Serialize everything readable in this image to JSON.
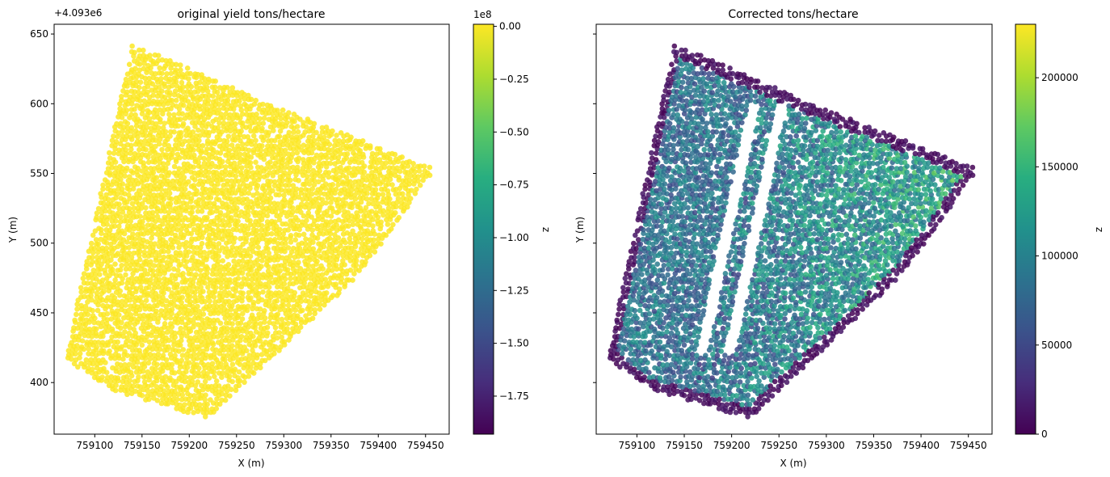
{
  "chart_data": [
    {
      "type": "scatter",
      "title": "original yield tons/hectare",
      "xlabel": "X (m)",
      "ylabel": "Y (m)",
      "y_offset_label": "+4.093e6",
      "xlim": [
        759057,
        759475
      ],
      "ylim": [
        363,
        657
      ],
      "xticks": [
        759100,
        759150,
        759200,
        759250,
        759300,
        759350,
        759400,
        759450
      ],
      "xtick_labels": [
        "759100",
        "759150",
        "759200",
        "759250",
        "759300",
        "759350",
        "759400",
        "759450"
      ],
      "yticks": [
        400,
        450,
        500,
        550,
        600,
        650
      ],
      "ytick_labels": [
        "400",
        "450",
        "500",
        "550",
        "600",
        "650"
      ],
      "field_outline_xy": [
        [
          759068,
          418
        ],
        [
          759140,
          643
        ],
        [
          759295,
          597
        ],
        [
          759460,
          553
        ],
        [
          759378,
          476
        ],
        [
          759256,
          398
        ],
        [
          759220,
          374
        ],
        [
          759110,
          396
        ]
      ],
      "colorbar": {
        "label": "z",
        "offset_label": "1e8",
        "range": [
          -1.93,
          0.01
        ],
        "ticks": [
          0.0,
          -0.25,
          -0.5,
          -0.75,
          -1.0,
          -1.25,
          -1.5,
          -1.75
        ],
        "tick_labels": [
          "0.00",
          "−0.25",
          "−0.50",
          "−0.75",
          "−1.00",
          "−1.25",
          "−1.50",
          "−1.75"
        ],
        "colormap": "viridis"
      },
      "point_value": 0.0,
      "point_color": "#fde725"
    },
    {
      "type": "scatter",
      "title": "Corrected tons/hectare",
      "xlabel": "X (m)",
      "ylabel": "Y (m)",
      "xlim": [
        759057,
        759475
      ],
      "ylim": [
        363,
        657
      ],
      "xticks": [
        759100,
        759150,
        759200,
        759250,
        759300,
        759350,
        759400,
        759450
      ],
      "xtick_labels": [
        "759100",
        "759150",
        "759200",
        "759250",
        "759300",
        "759350",
        "759400",
        "759450"
      ],
      "yticks": [
        400,
        450,
        500,
        550,
        600,
        650
      ],
      "colorbar": {
        "label": "z",
        "range": [
          0,
          230000
        ],
        "ticks": [
          0,
          50000,
          100000,
          150000,
          200000
        ],
        "tick_labels": [
          "0",
          "50000",
          "100000",
          "150000",
          "200000"
        ],
        "colormap": "viridis"
      },
      "field_outline_xy": [
        [
          759068,
          418
        ],
        [
          759140,
          643
        ],
        [
          759295,
          597
        ],
        [
          759460,
          553
        ],
        [
          759378,
          476
        ],
        [
          759256,
          398
        ],
        [
          759220,
          374
        ],
        [
          759110,
          396
        ]
      ],
      "value_range": [
        0,
        230000
      ]
    }
  ]
}
